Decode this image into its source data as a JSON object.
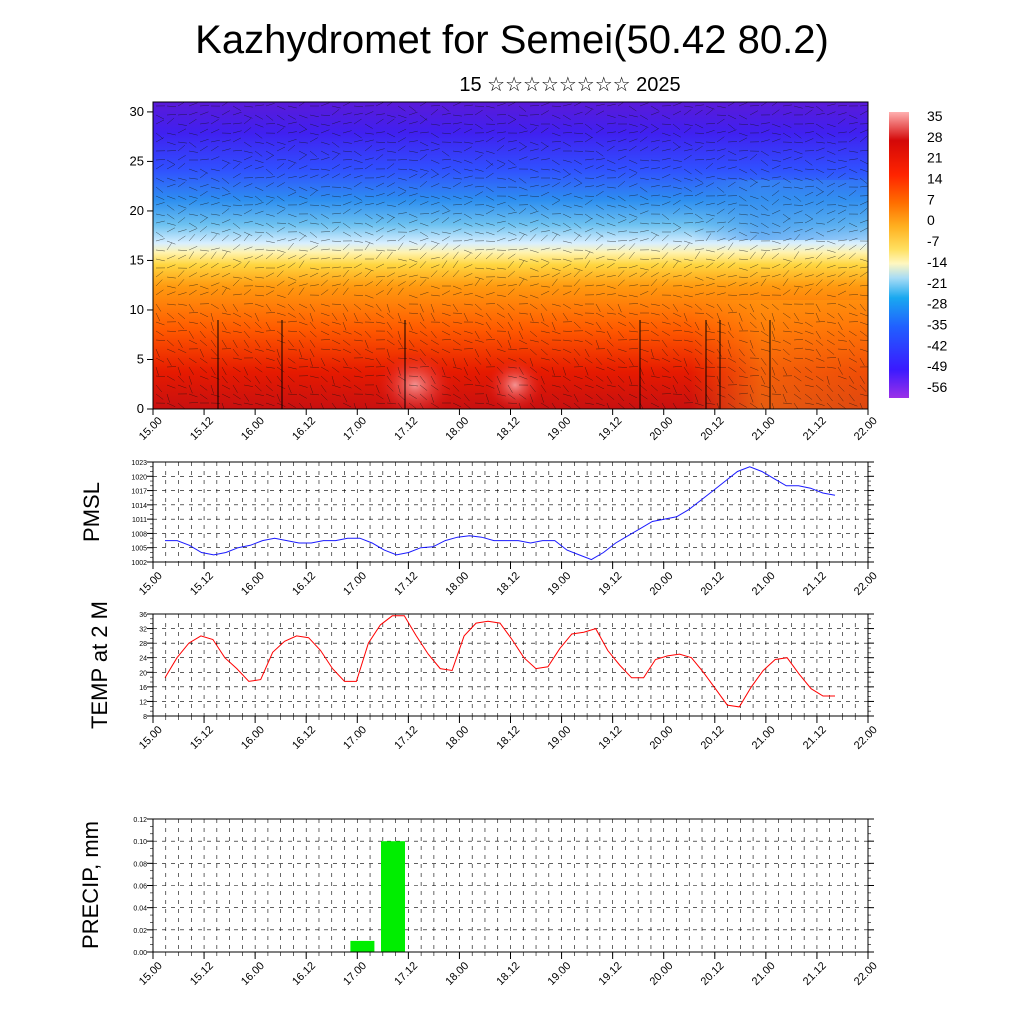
{
  "header": {
    "title": "Kazhydromet for Semei(50.42 80.2)",
    "subtitle": "15 ☆☆☆☆☆☆☆☆ 2025"
  },
  "colors": {
    "pmsl_line": "#1a1aff",
    "temp_line": "#ff0000",
    "precip_bar": "#00ee00",
    "colorbar": [
      "#8a2be2",
      "#3030ff",
      "#1e90ff",
      "#87ceeb",
      "#fffacd",
      "#ffd700",
      "#ff8c00",
      "#ff2a00",
      "#d40000",
      "#ffb0b0"
    ]
  },
  "chart_data": [
    {
      "type": "heatmap",
      "name": "cross-section",
      "x_ticks": [
        "15.00",
        "15.12",
        "16.00",
        "16.12",
        "17.00",
        "17.12",
        "18.00",
        "18.12",
        "19.00",
        "19.12",
        "20.00",
        "20.12",
        "21.00",
        "21.12",
        "22.00"
      ],
      "y_ticks": [
        "0",
        "5",
        "10",
        "15",
        "20",
        "25",
        "30"
      ],
      "ylim": [
        0,
        31
      ],
      "colorbar_labels": [
        "35",
        "28",
        "21",
        "14",
        "7",
        "0",
        "-7",
        "-14",
        "-21",
        "-28",
        "-35",
        "-42",
        "-49",
        "-56"
      ]
    },
    {
      "type": "line",
      "name": "pmsl",
      "ylabel": "PMSL",
      "ylim": [
        1002,
        1023
      ],
      "y_ticks": [
        "1023",
        "1020",
        "1017",
        "1014",
        "1011",
        "1008",
        "1005",
        "1002"
      ],
      "x_ticks": [
        "15.00",
        "15.12",
        "16.00",
        "16.12",
        "17.00",
        "17.12",
        "18.00",
        "18.12",
        "19.00",
        "19.12",
        "20.00",
        "20.12",
        "21.00",
        "21.12",
        "22.00"
      ],
      "values": [
        1006.5,
        1006.5,
        1005.5,
        1004,
        1003.5,
        1004,
        1005,
        1005.5,
        1006.5,
        1007,
        1006.5,
        1006,
        1006,
        1006.5,
        1006.5,
        1007,
        1007,
        1006,
        1004.5,
        1003.5,
        1004,
        1005,
        1005.2,
        1006.5,
        1007.2,
        1007.5,
        1007.2,
        1006.5,
        1006.5,
        1006.5,
        1006,
        1006.5,
        1006.5,
        1004.5,
        1003.5,
        1002.5,
        1004,
        1006,
        1007.5,
        1009,
        1010.5,
        1011,
        1011.5,
        1013,
        1015,
        1017,
        1019,
        1021,
        1022,
        1021,
        1019.5,
        1018,
        1018,
        1017.5,
        1016.5,
        1016
      ]
    },
    {
      "type": "line",
      "name": "temp",
      "ylabel": "TEMP at 2 M",
      "ylim": [
        8,
        36
      ],
      "y_ticks": [
        "36",
        "32",
        "28",
        "24",
        "20",
        "16",
        "12",
        "8"
      ],
      "x_ticks": [
        "15.00",
        "15.12",
        "16.00",
        "16.12",
        "17.00",
        "17.12",
        "18.00",
        "18.12",
        "19.00",
        "19.12",
        "20.00",
        "20.12",
        "21.00",
        "21.12",
        "22.00"
      ],
      "values": [
        18.5,
        24,
        28,
        30,
        29,
        24,
        21,
        17.5,
        18,
        25.5,
        28.5,
        30,
        29.5,
        26,
        21,
        17.5,
        17.5,
        28,
        33,
        35.5,
        35.5,
        30,
        25,
        21,
        20.5,
        30,
        33.5,
        34,
        33.5,
        29,
        24,
        21,
        21.5,
        26.5,
        30.5,
        31,
        32,
        26,
        22,
        18.5,
        18.5,
        23.5,
        24.5,
        25,
        24,
        20,
        15.5,
        11,
        10.5,
        16,
        20.5,
        23.5,
        24,
        19.5,
        15.5,
        13.5,
        13.5
      ]
    },
    {
      "type": "bar",
      "name": "precip",
      "ylabel": "PRECIP, mm",
      "ylim": [
        0,
        0.12
      ],
      "y_ticks": [
        "0.12",
        "0.10",
        "0.08",
        "0.06",
        "0.04",
        "0.02",
        "0.00"
      ],
      "x_ticks": [
        "15.00",
        "15.12",
        "16.00",
        "16.12",
        "17.00",
        "17.12",
        "18.00",
        "18.12",
        "19.00",
        "19.12",
        "20.00",
        "20.12",
        "21.00",
        "21.12",
        "22.00"
      ],
      "bars": [
        {
          "x": 4.1,
          "value": 0.01
        },
        {
          "x": 4.7,
          "value": 0.1
        }
      ]
    }
  ]
}
